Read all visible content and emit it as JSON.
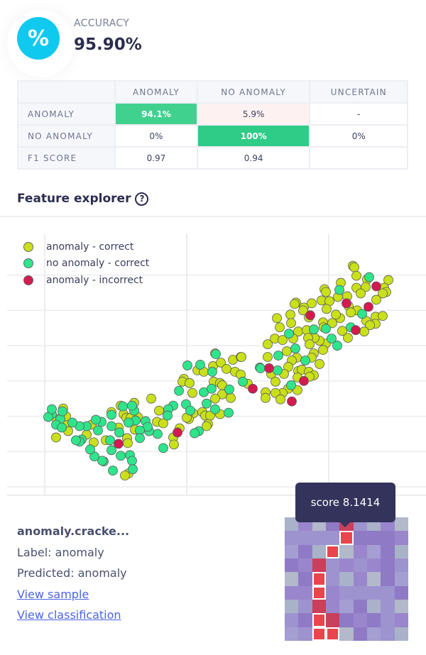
{
  "accuracy": {
    "label": "ACCURACY",
    "value": "95.90%",
    "icon": "percent-icon",
    "icon_glyph": "%"
  },
  "confusion_matrix": {
    "columns": [
      "ANOMALY",
      "NO ANOMALY",
      "UNCERTAIN"
    ],
    "rows": [
      {
        "label": "ANOMALY",
        "cells": [
          "94.1%",
          "5.9%",
          "-"
        ]
      },
      {
        "label": "NO ANOMALY",
        "cells": [
          "0%",
          "100%",
          "0%"
        ]
      },
      {
        "label": "F1 SCORE",
        "cells": [
          "0.97",
          "0.94",
          ""
        ]
      }
    ]
  },
  "feature_explorer": {
    "title": "Feature explorer",
    "help_icon": "question-circle-icon",
    "help_glyph": "?"
  },
  "colors": {
    "anomaly_correct": "#c9e01a",
    "no_anomaly_correct": "#2fe58b",
    "anomaly_incorrect": "#d41a50",
    "cell_high": "#41d18f",
    "cell_full": "#2ecc87",
    "cell_low": "#fdf1f1",
    "tooltip": "#33335c",
    "link": "#4b63e6"
  },
  "chart_data": {
    "type": "scatter",
    "grid": true,
    "legend_position": "top-left",
    "xlim": [
      -53,
      537
    ],
    "ylim": [
      -62,
      328
    ],
    "series": [
      {
        "name": "anomaly - correct",
        "color": "#c9e01a",
        "points": [
          [
            265,
            130
          ],
          [
            276,
            134
          ],
          [
            215,
            115
          ],
          [
            224,
            113
          ],
          [
            237,
            121
          ],
          [
            248,
            126
          ],
          [
            256,
            117
          ],
          [
            268,
            113
          ],
          [
            276,
            109
          ],
          [
            286,
            96
          ],
          [
            196,
            103
          ],
          [
            194,
            99
          ],
          [
            204,
            97
          ],
          [
            208,
            83
          ],
          [
            238,
            99
          ],
          [
            247,
            97
          ],
          [
            250,
            94
          ],
          [
            250,
            81
          ],
          [
            262,
            76
          ],
          [
            240,
            75
          ],
          [
            209,
            54
          ],
          [
            247,
            53
          ],
          [
            222,
            56
          ],
          [
            226,
            51
          ],
          [
            233,
            51
          ],
          [
            230,
            39
          ],
          [
            228,
            36
          ],
          [
            203,
            46
          ],
          [
            200,
            48
          ],
          [
            150,
            75
          ],
          [
            161,
            58
          ],
          [
            158,
            42
          ],
          [
            167,
            40
          ],
          [
            190,
            33
          ],
          [
            181,
            20
          ],
          [
            182,
            10
          ],
          [
            131,
            49
          ],
          [
            126,
            69
          ],
          [
            107,
            65
          ],
          [
            111,
            53
          ],
          [
            115,
            48
          ],
          [
            121,
            48
          ],
          [
            127,
            31
          ],
          [
            104,
            34
          ],
          [
            94,
            56
          ],
          [
            116,
            19
          ],
          [
            117,
            12
          ],
          [
            86,
            16
          ],
          [
            118,
            -31
          ],
          [
            113,
            -34
          ],
          [
            69,
            13
          ],
          [
            59,
            24
          ],
          [
            66,
            38
          ],
          [
            33,
            29
          ],
          [
            16,
            20
          ],
          [
            28,
            40
          ],
          [
            30,
            50
          ],
          [
            26,
            61
          ],
          [
            17,
            46
          ],
          [
            240,
            139
          ],
          [
            434,
            263
          ],
          [
            436,
            261
          ],
          [
            439,
            249
          ],
          [
            454,
            244
          ],
          [
            484,
            243
          ],
          [
            478,
            232
          ],
          [
            481,
            226
          ],
          [
            476,
            224
          ],
          [
            467,
            215
          ],
          [
            452,
            233
          ],
          [
            439,
            232
          ],
          [
            445,
            224
          ],
          [
            417,
            239
          ],
          [
            413,
            219
          ],
          [
            426,
            220
          ],
          [
            428,
            206
          ],
          [
            394,
            230
          ],
          [
            396,
            226
          ],
          [
            390,
            214
          ],
          [
            401,
            213
          ],
          [
            397,
            202
          ],
          [
            440,
            200
          ],
          [
            431,
            197
          ],
          [
            453,
            185
          ],
          [
            466,
            191
          ],
          [
            476,
            192
          ],
          [
            466,
            181
          ],
          [
            458,
            179
          ],
          [
            450,
            170
          ],
          [
            427,
            161
          ],
          [
            419,
            171
          ],
          [
            416,
            189
          ],
          [
            410,
            194
          ],
          [
            405,
            182
          ],
          [
            392,
            183
          ],
          [
            393,
            176
          ],
          [
            396,
            153
          ],
          [
            392,
            144
          ],
          [
            387,
            157
          ],
          [
            380,
            161
          ],
          [
            376,
            210
          ],
          [
            372,
            190
          ],
          [
            365,
            204
          ],
          [
            364,
            200
          ],
          [
            354,
            211
          ],
          [
            352,
            209
          ],
          [
            346,
            194
          ],
          [
            347,
            182
          ],
          [
            327,
            189
          ],
          [
            331,
            176
          ],
          [
            357,
            170
          ],
          [
            350,
            160
          ],
          [
            369,
            172
          ],
          [
            371,
            161
          ],
          [
            373,
            152
          ],
          [
            324,
            160
          ],
          [
            335,
            158
          ],
          [
            314,
            152
          ],
          [
            341,
            142
          ],
          [
            355,
            133
          ],
          [
            314,
            134
          ],
          [
            379,
            139
          ],
          [
            376,
            133
          ],
          [
            387,
            124
          ],
          [
            348,
            129
          ],
          [
            343,
            120
          ],
          [
            319,
            110
          ],
          [
            337,
            110
          ],
          [
            357,
            114
          ],
          [
            362,
            116
          ],
          [
            372,
            113
          ],
          [
            379,
            108
          ],
          [
            373,
            106
          ],
          [
            356,
            105
          ],
          [
            325,
            99
          ],
          [
            356,
            87
          ],
          [
            343,
            89
          ],
          [
            335,
            83
          ],
          [
            325,
            83
          ],
          [
            311,
            84
          ],
          [
            311,
            76
          ],
          [
            332,
            74
          ],
          [
            277,
            134
          ]
        ]
      },
      {
        "name": "no anomaly - correct",
        "color": "#2fe58b",
        "points": [
          [
            241,
            138
          ],
          [
            201,
            122
          ],
          [
            219,
            123
          ],
          [
            236,
            113
          ],
          [
            279,
            99
          ],
          [
            303,
            119
          ],
          [
            189,
            86
          ],
          [
            224,
            84
          ],
          [
            235,
            89
          ],
          [
            260,
            88
          ],
          [
            228,
            68
          ],
          [
            199,
            67
          ],
          [
            205,
            58
          ],
          [
            240,
            60
          ],
          [
            259,
            55
          ],
          [
            217,
            29
          ],
          [
            211,
            26
          ],
          [
            181,
            65
          ],
          [
            174,
            60
          ],
          [
            173,
            51
          ],
          [
            167,
            5
          ],
          [
            159,
            25
          ],
          [
            147,
            29
          ],
          [
            142,
            43
          ],
          [
            145,
            35
          ],
          [
            134,
            30
          ],
          [
            134,
            19
          ],
          [
            128,
            44
          ],
          [
            126,
            58
          ],
          [
            123,
            65
          ],
          [
            110,
            64
          ],
          [
            118,
            41
          ],
          [
            105,
            27
          ],
          [
            94,
            52
          ],
          [
            94,
            36
          ],
          [
            92,
            16
          ],
          [
            94,
            2
          ],
          [
            107,
            -6
          ],
          [
            120,
            -5
          ],
          [
            123,
            -13
          ],
          [
            124,
            -25
          ],
          [
            96,
            -27
          ],
          [
            83,
            -14
          ],
          [
            81,
            -13
          ],
          [
            70,
            -7
          ],
          [
            64,
            3
          ],
          [
            52,
            17
          ],
          [
            49,
            14
          ],
          [
            44,
            16
          ],
          [
            75,
            30
          ],
          [
            80,
            42
          ],
          [
            72,
            45
          ],
          [
            59,
            36
          ],
          [
            49,
            36
          ],
          [
            39,
            41
          ],
          [
            22,
            46
          ],
          [
            16,
            38
          ],
          [
            24,
            34
          ],
          [
            25,
            57
          ],
          [
            10,
            53
          ],
          [
            5,
            49
          ],
          [
            10,
            60
          ],
          [
            457,
            247
          ],
          [
            415,
            229
          ],
          [
            447,
            195
          ],
          [
            431,
            176
          ],
          [
            396,
            174
          ],
          [
            404,
            160
          ],
          [
            412,
            150
          ],
          [
            379,
            173
          ],
          [
            344,
            167
          ],
          [
            353,
            146
          ],
          [
            329,
            136
          ],
          [
            367,
            129
          ],
          [
            304,
            118
          ],
          [
            328,
            115
          ],
          [
            347,
            94
          ]
        ]
      },
      {
        "name": "anomaly - incorrect",
        "color": "#d41a50",
        "points": [
          [
            293,
            89
          ],
          [
            187,
            27
          ],
          [
            104,
            11
          ],
          [
            467,
            234
          ],
          [
            425,
            210
          ],
          [
            456,
            205
          ],
          [
            438,
            172
          ],
          [
            374,
            193
          ],
          [
            316,
            118
          ],
          [
            365,
            100
          ],
          [
            348,
            71
          ]
        ]
      }
    ]
  },
  "selected_sample": {
    "name": "anomaly.cracke...",
    "label": "Label: anomaly",
    "predicted": "Predicted: anomaly",
    "view_sample": "View sample",
    "view_classification": "View classification",
    "tooltip": "score 8.1414",
    "anomaly_cells": [
      [
        0,
        4,
        false
      ],
      [
        1,
        4,
        true
      ],
      [
        2,
        3,
        true
      ],
      [
        3,
        2,
        false
      ],
      [
        4,
        2,
        true
      ],
      [
        5,
        2,
        true
      ],
      [
        6,
        2,
        false
      ],
      [
        7,
        2,
        true
      ],
      [
        7,
        3,
        false
      ],
      [
        8,
        2,
        true
      ],
      [
        8,
        3,
        true
      ]
    ]
  }
}
